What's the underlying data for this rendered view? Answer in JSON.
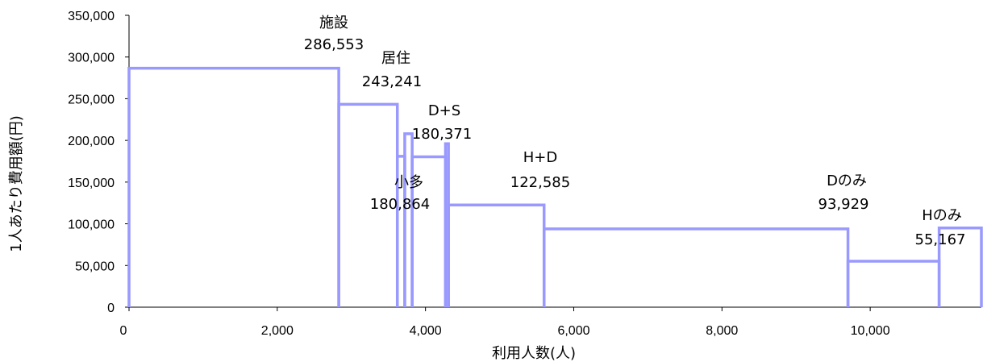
{
  "chart_data": {
    "type": "step",
    "xlabel": "利用人数(人)",
    "ylabel": "1人あたり費用額(円)",
    "xlim": [
      0,
      11500
    ],
    "ylim": [
      0,
      350000
    ],
    "xticks": [
      "0",
      "2,000",
      "4,000",
      "6,000",
      "8,000",
      "10,000"
    ],
    "yticks": [
      "0",
      "50,000",
      "100,000",
      "150,000",
      "200,000",
      "250,000",
      "300,000",
      "350,000"
    ],
    "color": "#9999ff",
    "segments": [
      {
        "x0": 0,
        "x1": 2830,
        "y": 286553
      },
      {
        "x0": 2830,
        "x1": 3620,
        "y": 243241
      },
      {
        "x0": 3620,
        "x1": 3720,
        "y": 180864
      },
      {
        "x0": 3720,
        "x1": 3820,
        "y": 208000
      },
      {
        "x0": 3820,
        "x1": 4270,
        "y": 180371
      },
      {
        "x0": 4270,
        "x1": 4310,
        "y": 196000
      },
      {
        "x0": 4310,
        "x1": 5600,
        "y": 122585
      },
      {
        "x0": 5600,
        "x1": 9700,
        "y": 93929
      },
      {
        "x0": 9700,
        "x1": 10930,
        "y": 55167
      },
      {
        "x0": 10930,
        "x1": 11500,
        "y": 95000
      }
    ],
    "annotations": [
      {
        "name": "施設",
        "value": "286,553"
      },
      {
        "name": "居住",
        "value": "243,241"
      },
      {
        "name": "D+S",
        "value": "180,371"
      },
      {
        "name": "小多",
        "value": "180,864"
      },
      {
        "name": "H+D",
        "value": "122,585"
      },
      {
        "name": "Dのみ",
        "value": "93,929"
      },
      {
        "name": "Hのみ",
        "value": "55,167"
      }
    ]
  }
}
